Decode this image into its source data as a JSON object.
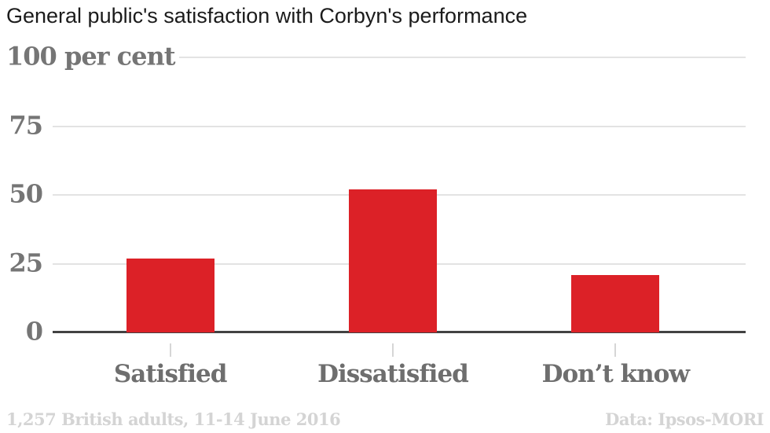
{
  "title": "General public's satisfaction with Corbyn's performance",
  "footer": {
    "left": "1,257 British adults, 11-14 June 2016",
    "right": "Data: Ipsos-MORI"
  },
  "chart_data": {
    "type": "bar",
    "title": "General public's satisfaction with Corbyn's performance",
    "categories": [
      "Satisfied",
      "Dissatisfied",
      "Don’t know"
    ],
    "values": [
      27,
      52,
      21
    ],
    "unit": "per cent",
    "xlabel": "",
    "ylabel": "per cent",
    "ylim": [
      0,
      100
    ],
    "y_axis": {
      "max_label": "100 per cent",
      "ticks": [
        100,
        75,
        50,
        25,
        0
      ]
    },
    "grid": true,
    "legend": "none",
    "bar_color": "#dc2127",
    "annotations": {
      "sample_note": "1,257 British adults, 11-14 June 2016",
      "source": "Data: Ipsos-MORI"
    }
  },
  "colors": {
    "bar": "#dc2127",
    "title_text": "#1b1b1b",
    "axis_text": "#757575",
    "category_text": "#6e6e6e",
    "footer_text": "#d4d4d4",
    "gridline": "#e3e3e3",
    "baseline": "#424242",
    "tick": "#d6d6d6",
    "background": "#ffffff"
  }
}
